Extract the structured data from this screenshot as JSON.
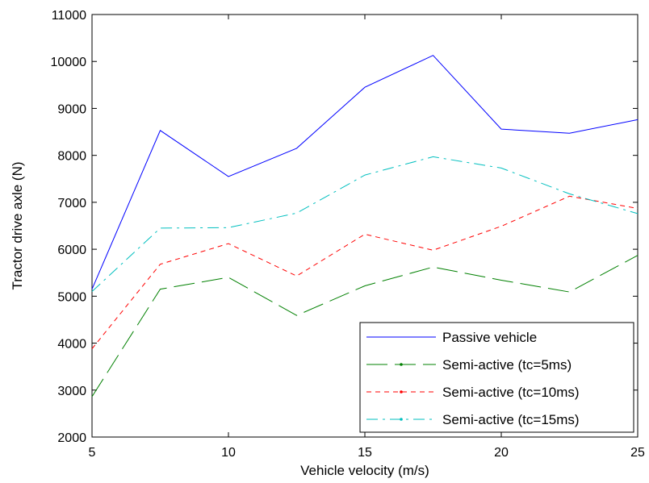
{
  "chart_data": {
    "type": "line",
    "xlabel": "Vehicle velocity (m/s)",
    "ylabel": "Tractor drive axle (N)",
    "xlim": [
      5,
      25
    ],
    "ylim": [
      2000,
      11000
    ],
    "xticks": [
      5,
      10,
      15,
      20,
      25
    ],
    "yticks": [
      2000,
      3000,
      4000,
      5000,
      6000,
      7000,
      8000,
      9000,
      10000,
      11000
    ],
    "grid": false,
    "legend_position": "bottom-right",
    "x": [
      5,
      7.5,
      10,
      12.5,
      15,
      17.5,
      20,
      22.5,
      25
    ],
    "series": [
      {
        "name": "Passive vehicle",
        "color": "#0000ff",
        "style": "solid",
        "values": [
          5150,
          8530,
          7550,
          8150,
          9450,
          10130,
          8560,
          8470,
          8760
        ]
      },
      {
        "name": "Semi-active (tc=5ms)",
        "color": "#008000",
        "style": "longdash",
        "values": [
          2860,
          5150,
          5400,
          4590,
          5220,
          5620,
          5340,
          5090,
          5870
        ]
      },
      {
        "name": "Semi-active (tc=10ms)",
        "color": "#ff0000",
        "style": "dash",
        "values": [
          3880,
          5680,
          6120,
          5430,
          6320,
          5980,
          6490,
          7130,
          6870
        ]
      },
      {
        "name": "Semi-active (tc=15ms)",
        "color": "#00bfbf",
        "style": "dashdot",
        "values": [
          5100,
          6450,
          6460,
          6770,
          7580,
          7970,
          7730,
          7180,
          6760
        ]
      }
    ]
  }
}
